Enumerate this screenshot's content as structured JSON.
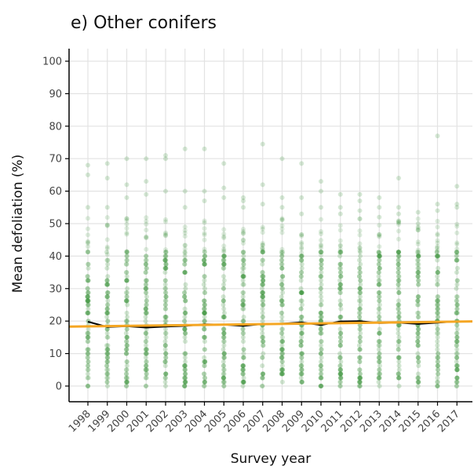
{
  "chart_data": {
    "type": "scatter",
    "title": "e) Other conifers",
    "xlabel": "Survey year",
    "ylabel": "Mean defoliation (%)",
    "categories": [
      "1998",
      "1999",
      "2000",
      "2001",
      "2002",
      "2003",
      "2004",
      "2005",
      "2006",
      "2007",
      "2008",
      "2009",
      "2010",
      "2011",
      "2012",
      "2013",
      "2014",
      "2015",
      "2016",
      "2017"
    ],
    "yticks": [
      0,
      10,
      20,
      30,
      40,
      50,
      60,
      70,
      80,
      90,
      100
    ],
    "ylim": [
      0,
      100
    ],
    "grid": true,
    "series": [
      {
        "kind": "points",
        "color": "#2e8b2e",
        "upper_outliers": [
          [
            68,
            65,
            55
          ],
          [
            68.5,
            64,
            55
          ],
          [
            70,
            62,
            58
          ],
          [
            70,
            63,
            59
          ],
          [
            71,
            70,
            60
          ],
          [
            73,
            60,
            55
          ],
          [
            73,
            60,
            57
          ],
          [
            68.5,
            61,
            58
          ],
          [
            58,
            57,
            55
          ],
          [
            74.5,
            62,
            56
          ],
          [
            70,
            58,
            55
          ],
          [
            68.5,
            58,
            53
          ],
          [
            63,
            60,
            55
          ],
          [
            59,
            55,
            53
          ],
          [
            59,
            57,
            54
          ],
          [
            58,
            55,
            52
          ],
          [
            64,
            55,
            53
          ],
          [
            53.5,
            50,
            48
          ],
          [
            77,
            56,
            54
          ],
          [
            61.5,
            56,
            55
          ]
        ]
      },
      {
        "kind": "line",
        "color": "#000000",
        "values": [
          19.8,
          18.2,
          18.4,
          18.0,
          18.3,
          18.5,
          19.0,
          18.9,
          18.5,
          19.1,
          19.2,
          19.6,
          18.8,
          19.9,
          20.0,
          19.4,
          19.5,
          19.1,
          19.5,
          19.9
        ]
      },
      {
        "kind": "trend",
        "color": "#f5a623",
        "start": 18.3,
        "end": 19.9
      }
    ]
  }
}
